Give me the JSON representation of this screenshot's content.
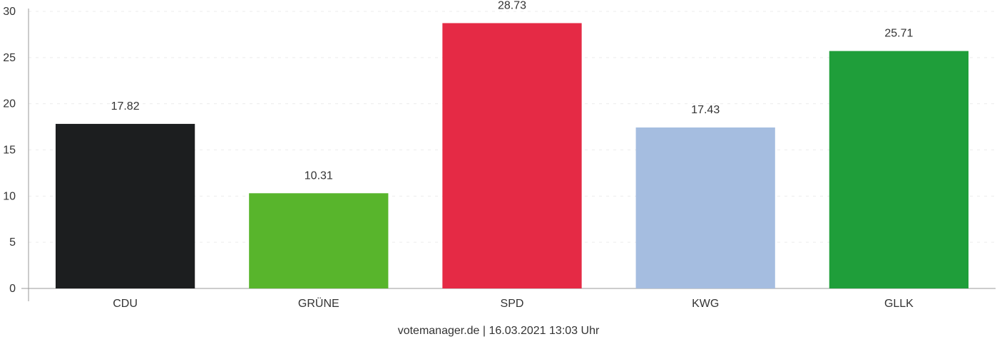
{
  "chart_data": {
    "type": "bar",
    "title": "",
    "xlabel": "",
    "ylabel": "",
    "categories": [
      "CDU",
      "GRÜNE",
      "SPD",
      "KWG",
      "GLLK"
    ],
    "values": [
      17.82,
      10.31,
      28.73,
      17.43,
      25.71
    ],
    "value_labels": [
      "17.82",
      "10.31",
      "28.73",
      "17.43",
      "25.71"
    ],
    "colors": [
      "#1c1e1f",
      "#58b52c",
      "#e52a45",
      "#a5bde0",
      "#1f9e3a"
    ],
    "ylim": [
      0,
      30
    ],
    "yticks": [
      0,
      5,
      10,
      15,
      20,
      25,
      30
    ],
    "grid": true,
    "legend": "none"
  },
  "footer": {
    "source": "votemanager.de | 16.03.2021 13:03 Uhr"
  }
}
